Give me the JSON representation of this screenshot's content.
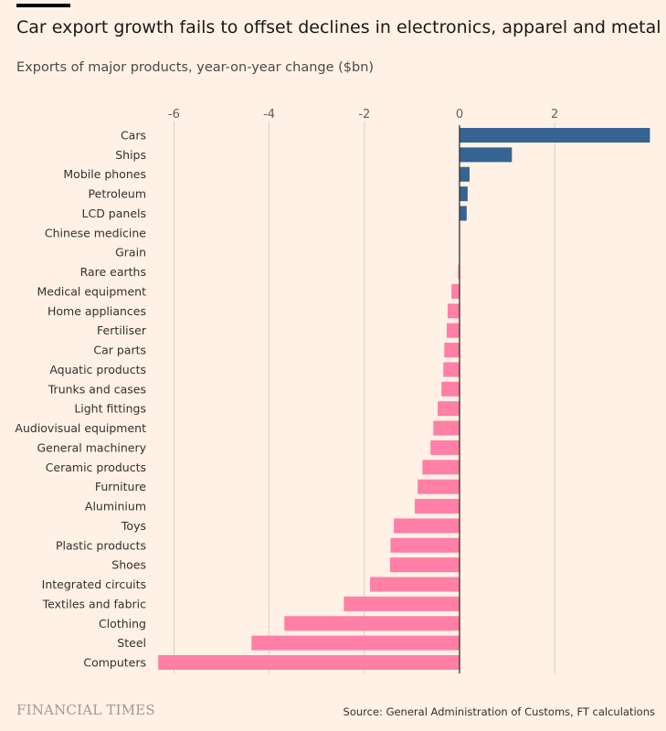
{
  "chart_data": {
    "type": "bar",
    "orientation": "horizontal",
    "title": "Car export growth fails to offset declines in electronics, apparel and metal",
    "subtitle": "Exports of major products, year-on-year change ($bn)",
    "xlim": [
      -6.4,
      4.0
    ],
    "xticks": [
      -6,
      -4,
      -2,
      0,
      2
    ],
    "xtick_labels": [
      "-6",
      "-4",
      "-2",
      "0",
      "2"
    ],
    "grid": true,
    "colors": {
      "positive": "#356392",
      "negative": "#ff7fa6"
    },
    "categories": [
      "Cars",
      "Ships",
      "Mobile phones",
      "Petroleum",
      "LCD panels",
      "Chinese medicine",
      "Grain",
      "Rare earths",
      "Medical equipment",
      "Home appliances",
      "Fertiliser",
      "Car parts",
      "Aquatic products",
      "Trunks and cases",
      "Light fittings",
      "Audiovisual equipment",
      "General machinery",
      "Ceramic products",
      "Furniture",
      "Aluminium",
      "Toys",
      "Plastic products",
      "Shoes",
      "Integrated circuits",
      "Textiles and fabric",
      "Clothing",
      "Steel",
      "Computers"
    ],
    "values": [
      4.0,
      1.1,
      0.21,
      0.17,
      0.15,
      0.0,
      0.0,
      -0.03,
      -0.17,
      -0.25,
      -0.27,
      -0.32,
      -0.34,
      -0.38,
      -0.46,
      -0.55,
      -0.61,
      -0.78,
      -0.88,
      -0.94,
      -1.38,
      -1.45,
      -1.46,
      -1.88,
      -2.43,
      -3.68,
      -4.37,
      -6.33
    ]
  },
  "footer": {
    "brand": "FINANCIAL TIMES",
    "source": "Source: General Administration of Customs, FT calculations"
  }
}
